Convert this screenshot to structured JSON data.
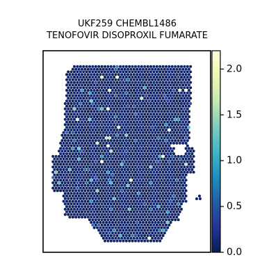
{
  "chart_data": {
    "type": "heatmap",
    "title": "UKF259 CHEMBL1486",
    "subtitle": "TENOFOVIR DISOPROXIL FUMARATE",
    "xlabel": "",
    "ylabel": "",
    "colorbar": {
      "range": [
        0,
        2.2
      ],
      "ticks": [
        0.0,
        0.5,
        1.0,
        1.5,
        2.0
      ],
      "tick_labels": [
        "0.0",
        "0.5",
        "1.0",
        "1.5",
        "2.0"
      ],
      "colormap": "YlGnBu",
      "stops": [
        "#081d58",
        "#253494",
        "#225ea8",
        "#1d91c0",
        "#41b6c4",
        "#7fcdbb",
        "#c7e9b4",
        "#edf8b1",
        "#ffffd9"
      ]
    },
    "background_value": 0.0,
    "grid": false
  },
  "colors": {
    "low": "#081d58",
    "high": "#ffffd9",
    "frame": "#000000"
  }
}
